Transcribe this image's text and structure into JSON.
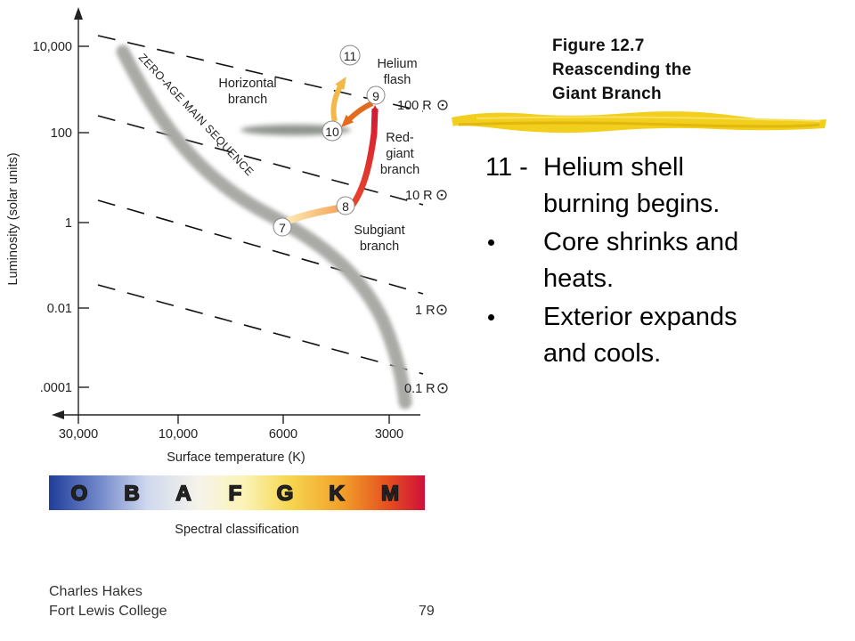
{
  "figure_title": {
    "line1": "Figure 12.7",
    "line2": "Reascending the",
    "line3": "Giant Branch"
  },
  "bullets": [
    {
      "number": "11 -",
      "line1": "Helium shell",
      "line2": "burning begins."
    },
    {
      "line1": "Core shrinks and",
      "line2": "heats."
    },
    {
      "line1": "Exterior expands",
      "line2": "and cools."
    }
  ],
  "footer": {
    "author_line1": "Charles Hakes",
    "author_line2": "Fort Lewis College",
    "page_number": "79"
  },
  "diagram": {
    "y_axis": {
      "label": "Luminosity (solar units)",
      "ticks": [
        "10,000",
        "100",
        "1",
        "0.01",
        ".0001"
      ]
    },
    "x_axis": {
      "label": "Surface temperature (K)",
      "ticks": [
        "30,000",
        "10,000",
        "6000",
        "3000"
      ]
    },
    "radius_lines": [
      "100 R",
      "10 R",
      "1 R",
      "0.1 R"
    ],
    "region_labels": {
      "zams": "ZERO-AGE MAIN SEQUENCE",
      "horizontal_1": "Horizontal",
      "horizontal_2": "branch",
      "helium_1": "Helium",
      "helium_2": "flash",
      "redgiant_1": "Red-",
      "redgiant_2": "giant",
      "redgiant_3": "branch",
      "subgiant_1": "Subgiant",
      "subgiant_2": "branch"
    },
    "stages": [
      "7",
      "8",
      "9",
      "10",
      "11"
    ],
    "spectral": {
      "classes": [
        "O",
        "B",
        "A",
        "F",
        "G",
        "K",
        "M"
      ],
      "label": "Spectral classification"
    },
    "colors": {
      "red_giant_track": "#d81f2a",
      "subgiant_track": "#f4b060",
      "helium_flash_track": "#e46a1e",
      "horizontal_track": "#f2b84a",
      "highlighter": "#f2cf1c"
    }
  }
}
